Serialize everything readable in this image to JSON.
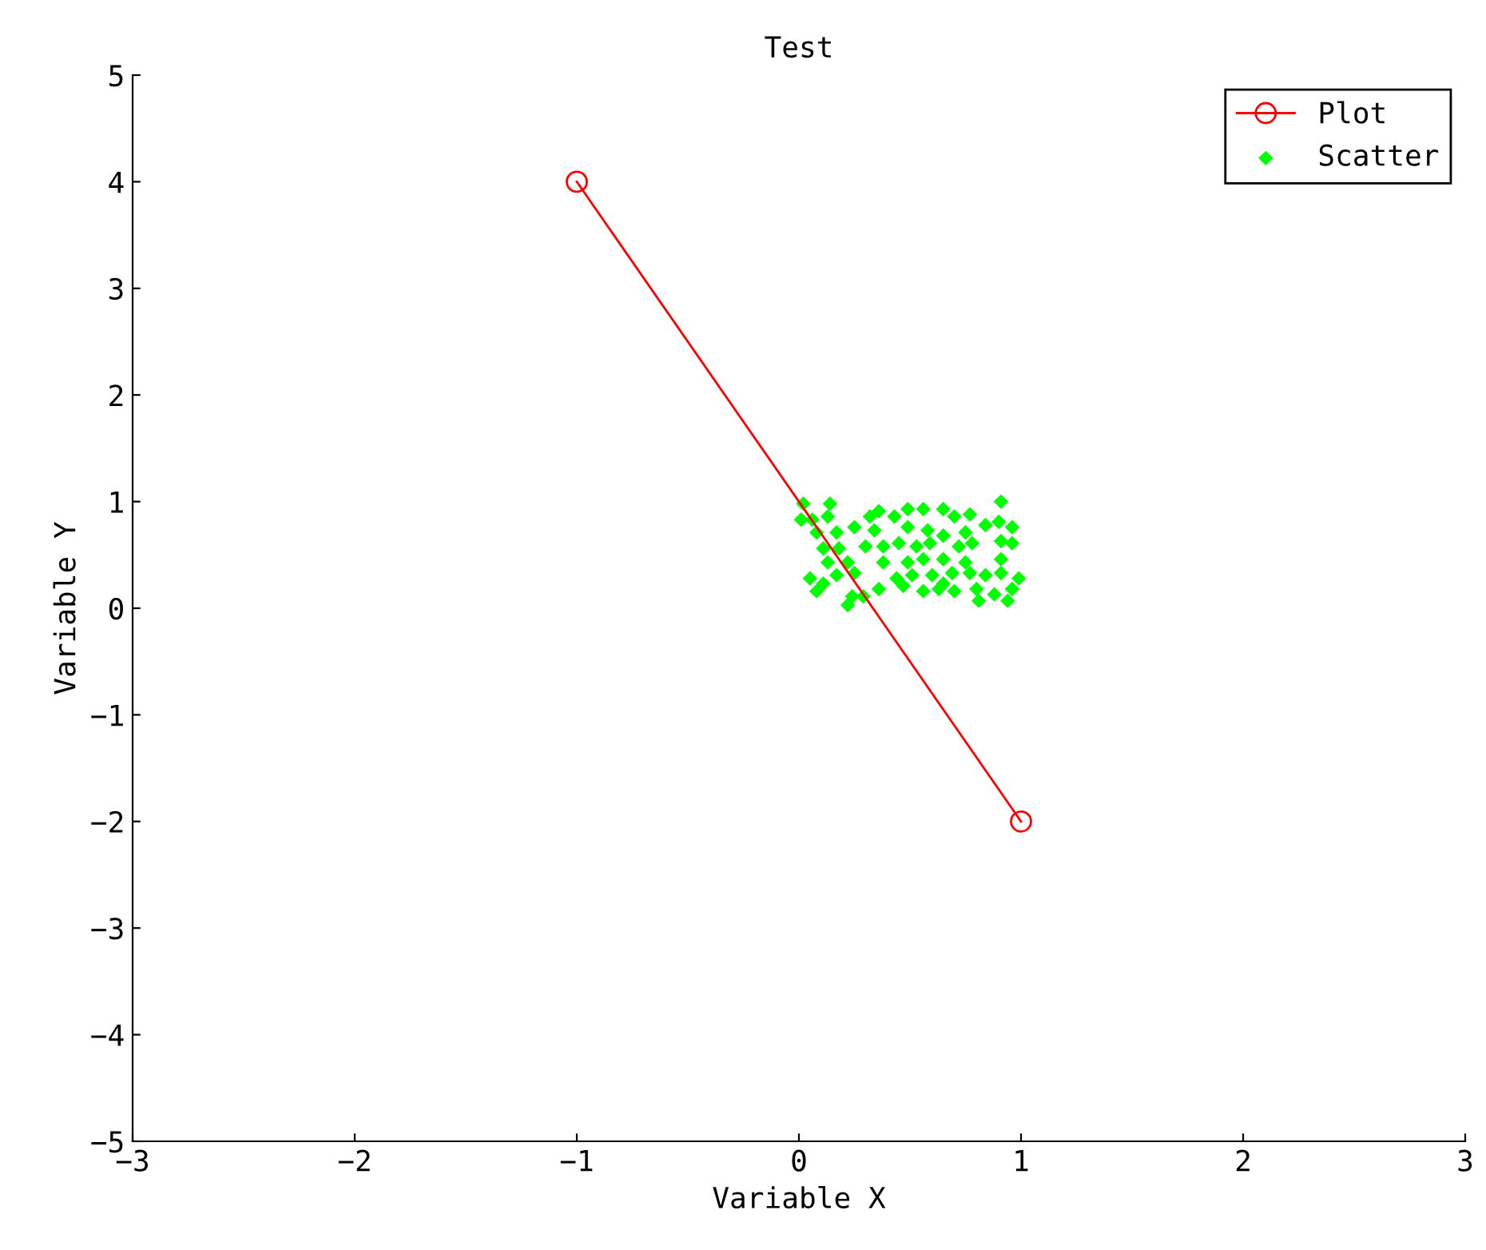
{
  "chart_data": {
    "type": "scatter",
    "title": "Test",
    "xlabel": "Variable X",
    "ylabel": "Variable Y",
    "xlim": [
      -3,
      3
    ],
    "ylim": [
      -5,
      5
    ],
    "xticks": [
      -3,
      -2,
      -1,
      0,
      1,
      2,
      3
    ],
    "yticks": [
      -5,
      -4,
      -3,
      -2,
      -1,
      0,
      1,
      2,
      3,
      4,
      5
    ],
    "grid": false,
    "legend": "top right",
    "series": [
      {
        "name": "Plot",
        "type": "line",
        "color": "#ff0000",
        "marker": "circle",
        "x": [
          -1,
          1
        ],
        "values": [
          4,
          -2
        ]
      },
      {
        "name": "Scatter",
        "color": "#00ff00",
        "marker": "diamond",
        "x": [
          0.01,
          0.02,
          0.14,
          0.06,
          0.13,
          0.25,
          0.08,
          0.17,
          0.11,
          0.18,
          0.32,
          0.36,
          0.43,
          0.49,
          0.56,
          0.65,
          0.7,
          0.77,
          0.91,
          0.9,
          0.96,
          0.34,
          0.49,
          0.58,
          0.65,
          0.75,
          0.84,
          0.3,
          0.38,
          0.45,
          0.53,
          0.59,
          0.72,
          0.78,
          0.91,
          0.96,
          0.13,
          0.22,
          0.38,
          0.49,
          0.56,
          0.65,
          0.75,
          0.91,
          0.05,
          0.11,
          0.17,
          0.25,
          0.44,
          0.51,
          0.6,
          0.69,
          0.77,
          0.84,
          0.91,
          0.99,
          0.08,
          0.24,
          0.36,
          0.47,
          0.56,
          0.63,
          0.7,
          0.8,
          0.88,
          0.96,
          0.29,
          0.65,
          0.22,
          0.94,
          0.81
        ],
        "values": [
          0.83,
          0.98,
          0.98,
          0.83,
          0.86,
          0.76,
          0.71,
          0.71,
          0.56,
          0.56,
          0.86,
          0.91,
          0.86,
          0.93,
          0.93,
          0.93,
          0.86,
          0.88,
          1.0,
          0.81,
          0.76,
          0.73,
          0.76,
          0.73,
          0.68,
          0.71,
          0.78,
          0.58,
          0.58,
          0.61,
          0.58,
          0.61,
          0.58,
          0.61,
          0.63,
          0.61,
          0.43,
          0.43,
          0.43,
          0.43,
          0.46,
          0.46,
          0.43,
          0.46,
          0.28,
          0.23,
          0.31,
          0.33,
          0.28,
          0.31,
          0.31,
          0.33,
          0.33,
          0.31,
          0.33,
          0.28,
          0.16,
          0.11,
          0.18,
          0.21,
          0.16,
          0.18,
          0.16,
          0.18,
          0.13,
          0.18,
          0.11,
          0.23,
          0.03,
          0.07,
          0.07
        ]
      }
    ]
  }
}
